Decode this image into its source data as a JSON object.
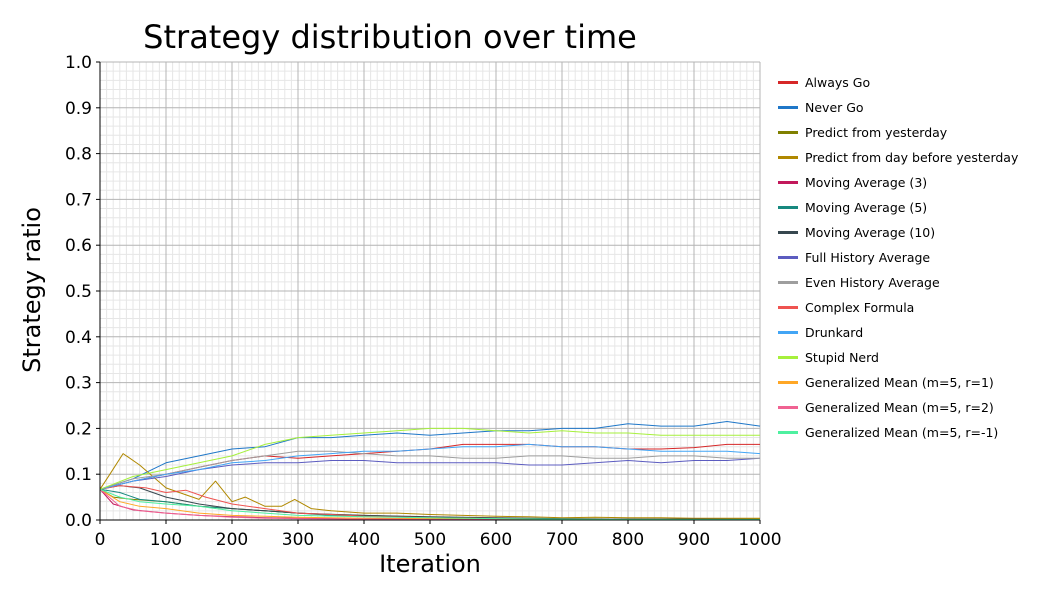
{
  "chart_data": {
    "type": "line",
    "title": "Strategy distribution over time",
    "xlabel": "Iteration",
    "ylabel": "Strategy ratio",
    "xlim": [
      0,
      1000
    ],
    "ylim": [
      0.0,
      1.0
    ],
    "xticks": [
      "0",
      "100",
      "200",
      "300",
      "400",
      "500",
      "600",
      "700",
      "800",
      "900",
      "1000"
    ],
    "yticks": [
      "0.0",
      "0.1",
      "0.2",
      "0.3",
      "0.4",
      "0.5",
      "0.6",
      "0.7",
      "0.8",
      "0.9",
      "1.0"
    ],
    "grid": true,
    "legend_position": "right",
    "series": [
      {
        "name": "Always Go",
        "color": "#d62728",
        "x": [
          0,
          50,
          100,
          150,
          200,
          250,
          300,
          350,
          400,
          450,
          500,
          550,
          600,
          650,
          700,
          750,
          800,
          850,
          900,
          950,
          1000
        ],
        "y": [
          0.067,
          0.085,
          0.1,
          0.115,
          0.13,
          0.14,
          0.135,
          0.14,
          0.145,
          0.15,
          0.155,
          0.165,
          0.165,
          0.165,
          0.16,
          0.16,
          0.155,
          0.155,
          0.158,
          0.165,
          0.165
        ]
      },
      {
        "name": "Never Go",
        "color": "#1f77c8",
        "x": [
          0,
          50,
          100,
          150,
          200,
          250,
          300,
          350,
          400,
          450,
          500,
          550,
          600,
          650,
          700,
          750,
          800,
          850,
          900,
          950,
          1000
        ],
        "y": [
          0.067,
          0.09,
          0.125,
          0.14,
          0.155,
          0.16,
          0.18,
          0.18,
          0.185,
          0.19,
          0.185,
          0.19,
          0.195,
          0.195,
          0.2,
          0.2,
          0.21,
          0.205,
          0.205,
          0.215,
          0.205
        ]
      },
      {
        "name": "Predict from yesterday",
        "color": "#808000",
        "x": [
          0,
          20,
          50,
          100,
          150,
          200,
          250,
          300,
          350,
          400,
          500,
          600,
          700,
          800,
          900,
          1000
        ],
        "y": [
          0.067,
          0.05,
          0.045,
          0.04,
          0.03,
          0.025,
          0.02,
          0.015,
          0.012,
          0.01,
          0.006,
          0.004,
          0.003,
          0.002,
          0.002,
          0.002
        ]
      },
      {
        "name": "Predict from day before yesterday",
        "color": "#b08800",
        "x": [
          0,
          15,
          35,
          60,
          100,
          150,
          175,
          200,
          220,
          250,
          275,
          295,
          320,
          350,
          400,
          450,
          500,
          550,
          600,
          650,
          700,
          750,
          800,
          850,
          900,
          950,
          1000
        ],
        "y": [
          0.067,
          0.1,
          0.145,
          0.12,
          0.07,
          0.045,
          0.085,
          0.04,
          0.05,
          0.03,
          0.03,
          0.045,
          0.025,
          0.02,
          0.015,
          0.015,
          0.012,
          0.01,
          0.008,
          0.007,
          0.005,
          0.006,
          0.005,
          0.005,
          0.004,
          0.004,
          0.004
        ]
      },
      {
        "name": "Moving Average (3)",
        "color": "#c2185b",
        "x": [
          0,
          20,
          50,
          100,
          150,
          200,
          250,
          300,
          400,
          500,
          600,
          700,
          800,
          900,
          1000
        ],
        "y": [
          0.067,
          0.035,
          0.022,
          0.015,
          0.01,
          0.007,
          0.005,
          0.004,
          0.003,
          0.002,
          0.001,
          0.001,
          0.001,
          0.0,
          0.0
        ]
      },
      {
        "name": "Moving Average (5)",
        "color": "#17897f",
        "x": [
          0,
          30,
          60,
          100,
          150,
          200,
          250,
          300,
          350,
          400,
          500,
          600,
          700,
          800,
          900,
          1000
        ],
        "y": [
          0.067,
          0.06,
          0.045,
          0.04,
          0.03,
          0.025,
          0.02,
          0.015,
          0.01,
          0.008,
          0.005,
          0.003,
          0.002,
          0.001,
          0.001,
          0.001
        ]
      },
      {
        "name": "Moving Average (10)",
        "color": "#37474f",
        "x": [
          0,
          30,
          60,
          100,
          150,
          200,
          250,
          300,
          400,
          500,
          600,
          700,
          800,
          900,
          1000
        ],
        "y": [
          0.067,
          0.075,
          0.07,
          0.05,
          0.035,
          0.025,
          0.02,
          0.015,
          0.01,
          0.007,
          0.005,
          0.003,
          0.002,
          0.002,
          0.001
        ]
      },
      {
        "name": "Full History Average",
        "color": "#5c5cc0",
        "x": [
          0,
          50,
          100,
          150,
          200,
          250,
          300,
          350,
          400,
          450,
          500,
          550,
          600,
          650,
          700,
          750,
          800,
          850,
          900,
          950,
          1000
        ],
        "y": [
          0.067,
          0.085,
          0.095,
          0.11,
          0.12,
          0.125,
          0.125,
          0.13,
          0.13,
          0.125,
          0.125,
          0.125,
          0.125,
          0.12,
          0.12,
          0.125,
          0.13,
          0.125,
          0.13,
          0.13,
          0.135
        ]
      },
      {
        "name": "Even History Average",
        "color": "#9e9e9e",
        "x": [
          0,
          50,
          100,
          150,
          200,
          250,
          300,
          350,
          400,
          450,
          500,
          550,
          600,
          650,
          700,
          750,
          800,
          850,
          900,
          950,
          1000
        ],
        "y": [
          0.067,
          0.09,
          0.1,
          0.115,
          0.13,
          0.14,
          0.15,
          0.15,
          0.145,
          0.14,
          0.14,
          0.135,
          0.135,
          0.14,
          0.14,
          0.135,
          0.135,
          0.14,
          0.14,
          0.135,
          0.135
        ]
      },
      {
        "name": "Complex Formula",
        "color": "#ef5350",
        "x": [
          0,
          30,
          70,
          100,
          130,
          160,
          200,
          250,
          300,
          350,
          400,
          500,
          600,
          700,
          800,
          900,
          1000
        ],
        "y": [
          0.067,
          0.075,
          0.07,
          0.06,
          0.065,
          0.05,
          0.035,
          0.025,
          0.015,
          0.012,
          0.008,
          0.005,
          0.003,
          0.002,
          0.001,
          0.001,
          0.001
        ]
      },
      {
        "name": "Drunkard",
        "color": "#42a5f5",
        "x": [
          0,
          50,
          100,
          150,
          200,
          250,
          300,
          350,
          400,
          450,
          500,
          550,
          600,
          650,
          700,
          750,
          800,
          850,
          900,
          950,
          1000
        ],
        "y": [
          0.067,
          0.085,
          0.1,
          0.11,
          0.125,
          0.13,
          0.14,
          0.145,
          0.15,
          0.15,
          0.155,
          0.16,
          0.16,
          0.165,
          0.16,
          0.16,
          0.155,
          0.15,
          0.15,
          0.15,
          0.145
        ]
      },
      {
        "name": "Stupid Nerd",
        "color": "#a6f03c",
        "x": [
          0,
          50,
          100,
          150,
          200,
          250,
          300,
          350,
          400,
          450,
          500,
          550,
          600,
          650,
          700,
          750,
          800,
          850,
          900,
          950,
          1000
        ],
        "y": [
          0.067,
          0.095,
          0.11,
          0.125,
          0.14,
          0.165,
          0.18,
          0.185,
          0.19,
          0.195,
          0.2,
          0.2,
          0.195,
          0.19,
          0.195,
          0.19,
          0.19,
          0.185,
          0.185,
          0.185,
          0.185
        ]
      },
      {
        "name": "Generalized Mean (m=5, r=1)",
        "color": "#ffa726",
        "x": [
          0,
          30,
          60,
          100,
          150,
          200,
          250,
          300,
          400,
          500,
          600,
          700,
          800,
          900,
          1000
        ],
        "y": [
          0.067,
          0.04,
          0.03,
          0.025,
          0.015,
          0.01,
          0.008,
          0.006,
          0.004,
          0.003,
          0.002,
          0.001,
          0.001,
          0.001,
          0.001
        ]
      },
      {
        "name": "Generalized Mean (m=5, r=2)",
        "color": "#f06292",
        "x": [
          0,
          30,
          60,
          100,
          150,
          200,
          250,
          300,
          400,
          500,
          600,
          700,
          800,
          900,
          1000
        ],
        "y": [
          0.067,
          0.03,
          0.02,
          0.015,
          0.01,
          0.006,
          0.004,
          0.003,
          0.002,
          0.001,
          0.001,
          0.0,
          0.0,
          0.0,
          0.0
        ]
      },
      {
        "name": "Generalized Mean (m=5, r=-1)",
        "color": "#4ef0a0",
        "x": [
          0,
          30,
          60,
          100,
          150,
          200,
          250,
          300,
          400,
          500,
          600,
          700,
          800,
          900,
          1000
        ],
        "y": [
          0.067,
          0.05,
          0.04,
          0.035,
          0.03,
          0.02,
          0.015,
          0.01,
          0.007,
          0.005,
          0.003,
          0.002,
          0.001,
          0.001,
          0.001
        ]
      }
    ]
  }
}
